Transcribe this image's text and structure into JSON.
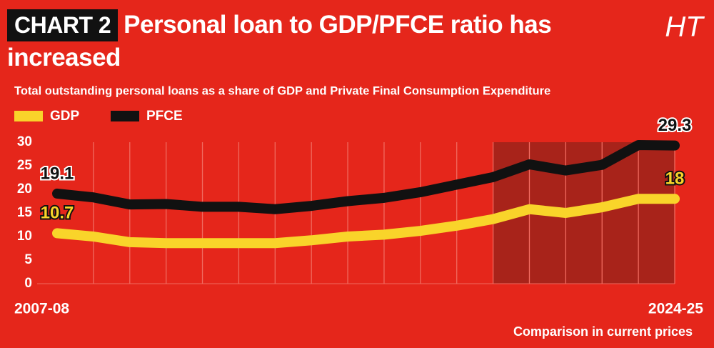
{
  "chart_data": {
    "type": "line",
    "badge": "CHART 2",
    "title": "Personal loan to GDP/PFCE ratio has increased",
    "subtitle": "Total outstanding personal loans as a share of GDP and Private Final Consumption Expenditure",
    "logo": "HT",
    "note": "Comparison in current prices",
    "categories": [
      "2007-08",
      null,
      null,
      null,
      null,
      null,
      null,
      null,
      null,
      null,
      null,
      null,
      null,
      null,
      null,
      null,
      null,
      "2024-25"
    ],
    "series": [
      {
        "name": "GDP",
        "color": "#f9d42a",
        "values": [
          10.7,
          10,
          8.8,
          8.6,
          8.6,
          8.6,
          8.6,
          9.2,
          10,
          10.4,
          11.2,
          12.3,
          13.7,
          15.8,
          15,
          16.2,
          18,
          18
        ]
      },
      {
        "name": "PFCE",
        "color": "#111111",
        "values": [
          19.1,
          18.3,
          16.8,
          16.9,
          16.3,
          16.3,
          15.8,
          16.5,
          17.5,
          18.2,
          19.4,
          21,
          22.6,
          25.3,
          24,
          25.2,
          29.4,
          29.3
        ]
      }
    ],
    "ylim": [
      0,
      30
    ],
    "yticks": [
      0,
      5,
      10,
      15,
      20,
      25,
      30
    ],
    "grid": true
  }
}
